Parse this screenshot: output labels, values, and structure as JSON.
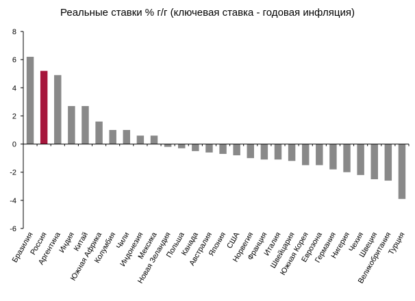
{
  "chart_data": {
    "type": "bar",
    "title": "Реальные ставки % г/г (ключевая ставка - годовая инфляция)",
    "xlabel": "",
    "ylabel": "",
    "ylim": [
      -6,
      8
    ],
    "yticks": [
      -6,
      -4,
      -2,
      0,
      2,
      4,
      6,
      8
    ],
    "grid": false,
    "legend": "none",
    "categories": [
      "Бразилия",
      "Россия",
      "Аргентина",
      "Индия",
      "Китай",
      "Южная Африка",
      "Колумбия",
      "Чили",
      "Индонезия",
      "Мексика",
      "Новая Зеландия",
      "Польша",
      "Канада",
      "Австралия",
      "Япония",
      "США",
      "Норвегия",
      "Франция",
      "Италия",
      "Швейцария",
      "Южная Корея",
      "Еврозона",
      "Германия",
      "Нигерия",
      "Чехия",
      "Швеция",
      "Великобритания",
      "Турция"
    ],
    "values": [
      6.2,
      5.2,
      4.9,
      2.7,
      2.7,
      1.6,
      1.0,
      1.0,
      0.6,
      0.6,
      -0.2,
      -0.3,
      -0.5,
      -0.6,
      -0.7,
      -0.8,
      -1.0,
      -1.1,
      -1.1,
      -1.2,
      -1.5,
      -1.5,
      -1.8,
      -2.0,
      -2.2,
      -2.5,
      -2.6,
      -3.9
    ],
    "colors": {
      "default": "#898989",
      "highlight": "#a6163c"
    },
    "highlight_index": 1
  }
}
